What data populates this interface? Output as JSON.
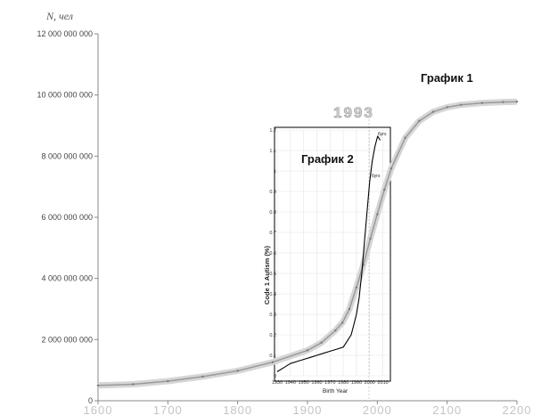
{
  "chart_data": [
    {
      "type": "line",
      "title": "График 1",
      "ylabel": "N, чел",
      "xlabel": "",
      "x_ticks": [
        "1600",
        "1700",
        "1800",
        "1900",
        "2000",
        "2100",
        "2200"
      ],
      "y_ticks": [
        "0",
        "2 000 000 000",
        "4 000 000 000",
        "6 000 000 000",
        "8 000 000 000",
        "10 000 000 000",
        "12 000 000 000"
      ],
      "xlim": [
        1600,
        2200
      ],
      "ylim": [
        0,
        12000000000
      ],
      "annotation": "1993",
      "series": [
        {
          "x": [
            1600,
            1650,
            1700,
            1750,
            1800,
            1850,
            1900,
            1920,
            1940,
            1950,
            1960,
            1970,
            1980,
            1990,
            2000,
            2010,
            2020,
            2040,
            2060,
            2080,
            2100,
            2120,
            2150,
            2180,
            2200
          ],
          "values": [
            500000000,
            540000000,
            640000000,
            790000000,
            980000000,
            1260000000,
            1650000000,
            1900000000,
            2300000000,
            2550000000,
            3000000000,
            3700000000,
            4450000000,
            5300000000,
            6100000000,
            6900000000,
            7600000000,
            8600000000,
            9150000000,
            9450000000,
            9600000000,
            9680000000,
            9740000000,
            9770000000,
            9780000000
          ],
          "color": "#9a9a9a"
        }
      ]
    },
    {
      "type": "line",
      "title": "График 2",
      "xlabel": "Birth Year",
      "ylabel": "Code 1 Autism (%)",
      "x_ticks": [
        "1930",
        "1940",
        "1950",
        "1960",
        "1970",
        "1980",
        "1990",
        "2000",
        "2010"
      ],
      "y_ticks": [
        "0",
        "0.1",
        "0.2",
        "0.3",
        "0.4",
        "0.5",
        "0.6",
        "0.7",
        "0.8",
        "0.9",
        "1",
        "1.1",
        "1.2"
      ],
      "xlim": [
        1930,
        2015
      ],
      "ylim": [
        0,
        1.2
      ],
      "annotations": [
        "6yrs",
        "6yrs"
      ],
      "series": [
        {
          "x": [
            1930,
            1935,
            1940,
            1945,
            1950,
            1955,
            1960,
            1965,
            1970,
            1975,
            1980,
            1983,
            1986,
            1988,
            1990,
            1992,
            1994,
            1996,
            1998,
            2000,
            2002,
            2004,
            2006,
            2008
          ],
          "values": [
            0.02,
            0.04,
            0.06,
            0.07,
            0.08,
            0.09,
            0.1,
            0.11,
            0.12,
            0.13,
            0.14,
            0.17,
            0.2,
            0.25,
            0.3,
            0.38,
            0.5,
            0.65,
            0.8,
            0.95,
            1.05,
            1.12,
            1.17,
            1.15
          ],
          "color": "#000000"
        }
      ]
    }
  ]
}
